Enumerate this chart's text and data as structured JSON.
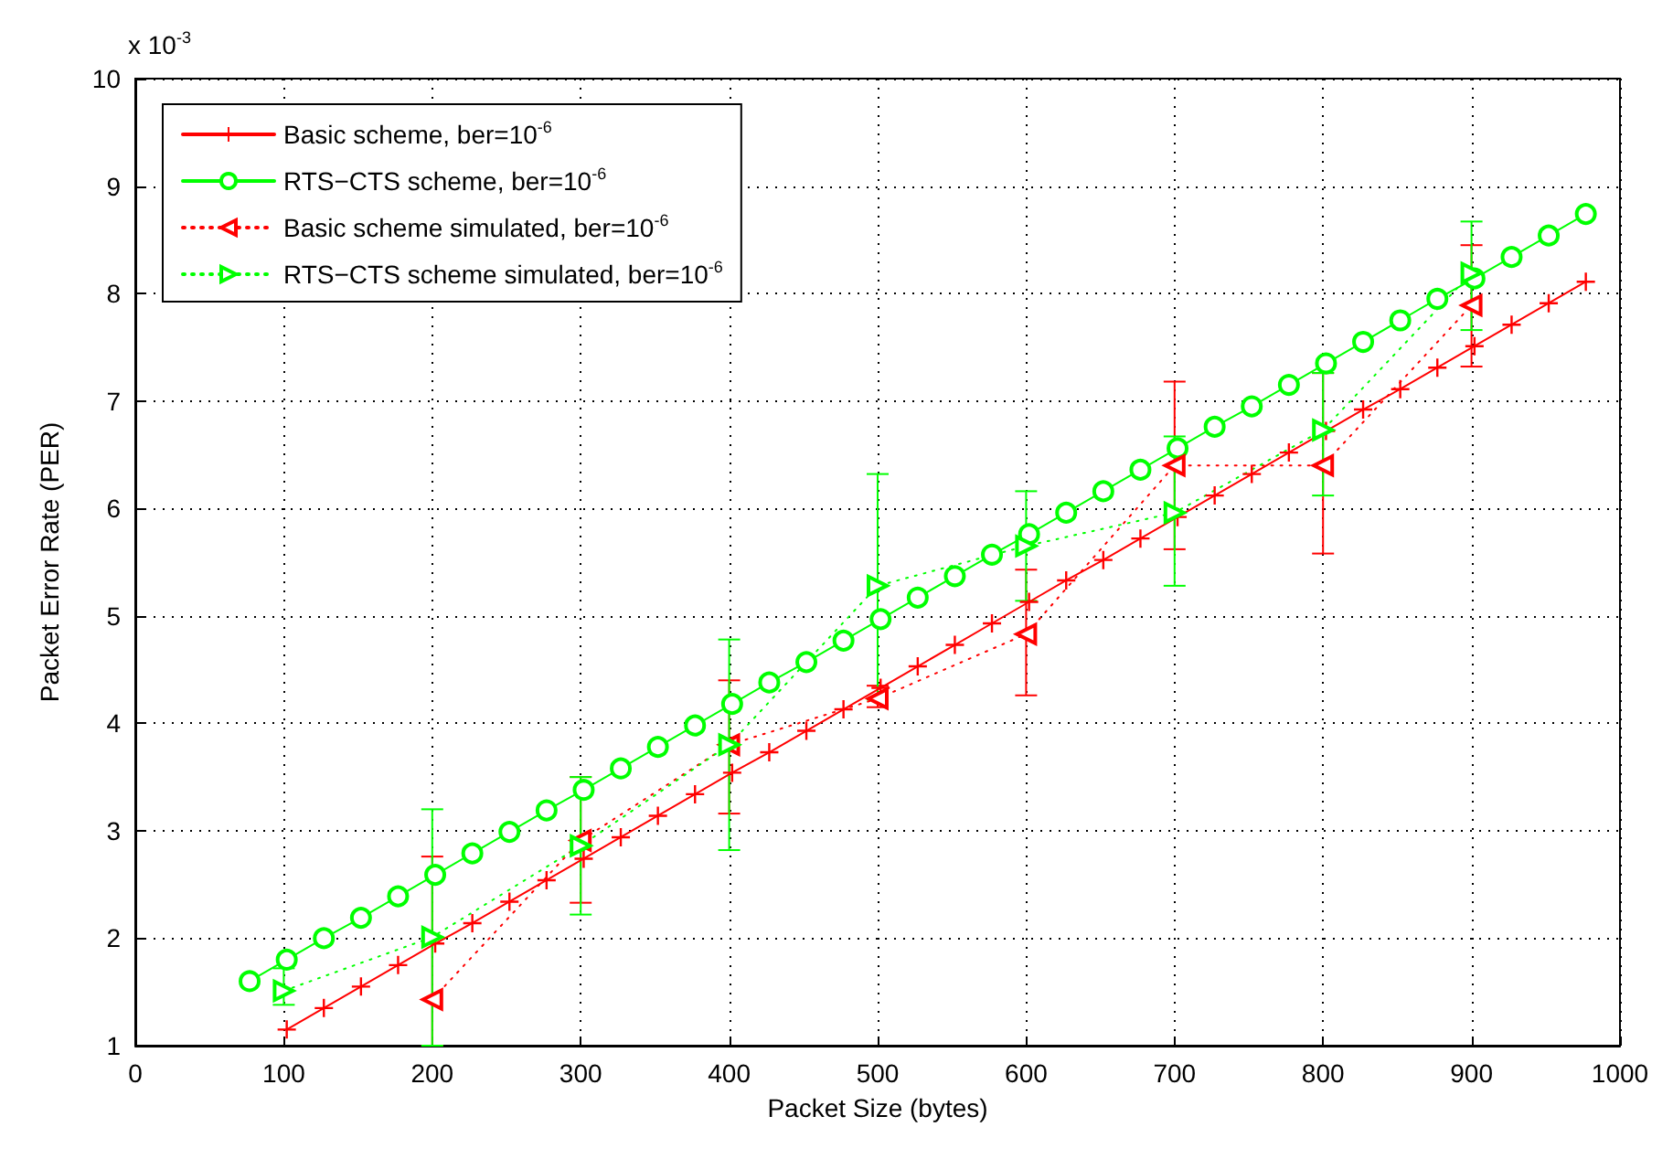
{
  "chart_data": {
    "type": "line",
    "xlabel": "Packet Size (bytes)",
    "ylabel": "Packet Error Rate (PER)",
    "annotations": [
      "x 10$^{-3}$"
    ],
    "xlim": [
      0,
      1000
    ],
    "ylim": [
      1,
      10
    ],
    "xticks": [
      0,
      100,
      200,
      300,
      400,
      500,
      600,
      700,
      800,
      900,
      1000
    ],
    "yticks": [
      1,
      2,
      3,
      4,
      5,
      6,
      7,
      8,
      9,
      10
    ],
    "grid": true,
    "legend": "top left",
    "series": [
      {
        "name": "Basic scheme, ber=10$^{-6}$",
        "color": "#ff0000",
        "marker": "cross",
        "line_style": "solid",
        "x": [
          102,
          127,
          152,
          177,
          202,
          227,
          252,
          277,
          302,
          327,
          352,
          377,
          402,
          427,
          452,
          477,
          502,
          527,
          552,
          577,
          602,
          627,
          652,
          677,
          702,
          727,
          752,
          777,
          802,
          827,
          852,
          877,
          902,
          927,
          952,
          977
        ],
        "values": [
          1.15,
          1.35,
          1.55,
          1.75,
          1.95,
          2.14,
          2.34,
          2.54,
          2.74,
          2.94,
          3.14,
          3.34,
          3.54,
          3.73,
          3.93,
          4.13,
          4.33,
          4.53,
          4.73,
          4.93,
          5.13,
          5.33,
          5.52,
          5.72,
          5.92,
          6.12,
          6.32,
          6.52,
          6.72,
          6.92,
          7.11,
          7.31,
          7.51,
          7.71,
          7.91,
          8.11
        ]
      },
      {
        "name": "RTS−CTS scheme, ber=10$^{-6}$",
        "color": "#00ff00",
        "marker": "circle",
        "line_style": "solid",
        "x": [
          77,
          102,
          127,
          152,
          177,
          202,
          227,
          252,
          277,
          302,
          327,
          352,
          377,
          402,
          427,
          452,
          477,
          502,
          527,
          552,
          577,
          602,
          627,
          652,
          677,
          702,
          727,
          752,
          777,
          802,
          827,
          852,
          877,
          902,
          927,
          952,
          977
        ],
        "values": [
          1.6,
          1.8,
          2.0,
          2.19,
          2.39,
          2.59,
          2.79,
          2.99,
          3.19,
          3.38,
          3.58,
          3.78,
          3.98,
          4.18,
          4.38,
          4.57,
          4.77,
          4.97,
          5.17,
          5.37,
          5.57,
          5.76,
          5.96,
          6.16,
          6.36,
          6.56,
          6.76,
          6.95,
          7.15,
          7.35,
          7.55,
          7.75,
          7.95,
          8.14,
          8.34,
          8.54,
          8.74
        ]
      },
      {
        "name": "Basic scheme simulated, ber=10$^{-6}$",
        "color": "#ff0000",
        "marker": "triangle",
        "line_style": "dotted",
        "x": [
          200,
          300,
          400,
          500,
          600,
          700,
          800,
          900
        ],
        "values": [
          1.43,
          2.91,
          3.8,
          4.23,
          4.83,
          6.4,
          6.4,
          7.89
        ],
        "errors": [
          [
            1,
            2.76
          ],
          [
            2.33,
            3.5
          ],
          [
            3.16,
            4.4
          ],
          [
            4.15,
            4.35
          ],
          [
            4.26,
            5.43
          ],
          [
            5.62,
            7.18
          ],
          [
            5.58,
            7.26
          ],
          [
            7.32,
            8.45
          ]
        ]
      },
      {
        "name": "RTS−CTS scheme simulated, ber=10$^{-6}$",
        "color": "#00ff00",
        "marker": "triangle",
        "line_style": "dotted",
        "x": [
          100,
          200,
          300,
          400,
          500,
          600,
          700,
          800,
          900
        ],
        "values": [
          1.51,
          2.01,
          2.86,
          3.8,
          5.28,
          5.65,
          5.96,
          6.73,
          8.19
        ],
        "errors": [
          [
            1.38,
            1.72
          ],
          [
            1,
            3.2
          ],
          [
            2.22,
            3.5
          ],
          [
            2.82,
            4.78
          ],
          [
            4.22,
            6.32
          ],
          [
            5.14,
            6.16
          ],
          [
            5.28,
            6.67
          ],
          [
            6.12,
            7.26
          ],
          [
            7.66,
            8.67
          ]
        ]
      }
    ]
  }
}
